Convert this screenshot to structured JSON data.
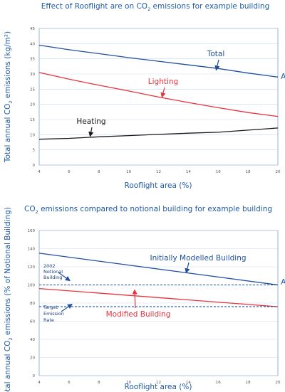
{
  "colors": {
    "title": "#1f5aa6",
    "blue": "#1f4f9e",
    "red": "#e8323c",
    "black": "#1a1a1a",
    "grid": "#c9d9ef",
    "axis": "#7f9fcf"
  },
  "chart_data": [
    {
      "type": "line",
      "title_pre": "Effect of Rooflight are on CO",
      "title_sub": "2",
      "title_post": " emissions for example building",
      "ylabel_pre": "Total annual CO",
      "ylabel_sub": "2",
      "ylabel_post": " emissions (kg/m²)",
      "xlabel": "Rooflight area (%)",
      "xlim": [
        4,
        20
      ],
      "ylim": [
        0,
        45
      ],
      "xticks": [
        "4",
        "6",
        "8",
        "10",
        "12",
        "14",
        "16",
        "18",
        "20"
      ],
      "yticks": [
        "0",
        "5",
        "10",
        "15",
        "20",
        "25",
        "30",
        "35",
        "40",
        "45"
      ],
      "grid": "horizontal",
      "series": [
        {
          "name": "Total",
          "color": "#1f4f9e",
          "x": [
            4,
            6,
            8,
            10,
            12,
            14,
            16,
            18,
            20
          ],
          "y": [
            39.5,
            38.0,
            36.7,
            35.4,
            34.2,
            33.0,
            31.8,
            30.3,
            29.0
          ]
        },
        {
          "name": "Lighting",
          "color": "#e8323c",
          "x": [
            4,
            6,
            8,
            10,
            12,
            14,
            16,
            18,
            20
          ],
          "y": [
            30.5,
            28.3,
            26.3,
            24.4,
            22.4,
            20.6,
            18.9,
            17.3,
            16.0
          ]
        },
        {
          "name": "Heating",
          "color": "#1a1a1a",
          "x": [
            4,
            6,
            8,
            10,
            12,
            14,
            16,
            18,
            20
          ],
          "y": [
            8.5,
            8.8,
            9.3,
            9.7,
            10.1,
            10.5,
            10.8,
            11.5,
            12.2
          ]
        }
      ],
      "annotations": [
        {
          "text": "Total",
          "color": "#1f4f9e"
        },
        {
          "text": "Lighting",
          "color": "#e8323c"
        },
        {
          "text": "Heating",
          "color": "#1a1a1a"
        },
        {
          "text": "A",
          "color": "#1f5aa6"
        }
      ]
    },
    {
      "type": "line",
      "title_pre": "CO",
      "title_sub": "2",
      "title_post": " emissions compared to notional building for example building",
      "ylabel_pre": "Total annual CO",
      "ylabel_sub": "2",
      "ylabel_post": " emissions (% of Notional Building)",
      "xlabel": "Rooflight area (%)",
      "xlim": [
        4,
        20
      ],
      "ylim": [
        0,
        160
      ],
      "xticks": [
        "4",
        "6",
        "8",
        "10",
        "12",
        "14",
        "16",
        "18",
        "20"
      ],
      "yticks": [
        "0",
        "20",
        "40",
        "60",
        "80",
        "100",
        "120",
        "140",
        "160"
      ],
      "grid": "horizontal",
      "series": [
        {
          "name": "Initially Modelled Building",
          "color": "#1f4f9e",
          "x": [
            4,
            20
          ],
          "y": [
            135,
            100
          ]
        },
        {
          "name": "Modified Building",
          "color": "#e8323c",
          "x": [
            4,
            20
          ],
          "y": [
            96,
            76
          ]
        },
        {
          "name": "2002 Notional Building",
          "color": "#1f4f9e",
          "dashed": true,
          "x": [
            4,
            20
          ],
          "y": [
            100,
            100
          ]
        },
        {
          "name": "Target Emission Rate",
          "color": "#1f4f9e",
          "dashed": true,
          "x": [
            4,
            20
          ],
          "y": [
            76,
            76
          ]
        }
      ],
      "annotations": [
        {
          "text": "Initially Modelled Building",
          "color": "#1f4f9e"
        },
        {
          "text": "Modified Building",
          "color": "#e8323c"
        },
        {
          "lines": [
            "2002",
            "Notional",
            "Building"
          ]
        },
        {
          "lines": [
            "Target",
            "Emission",
            "Rate"
          ]
        },
        {
          "text": "A",
          "color": "#1f5aa6"
        }
      ]
    }
  ]
}
